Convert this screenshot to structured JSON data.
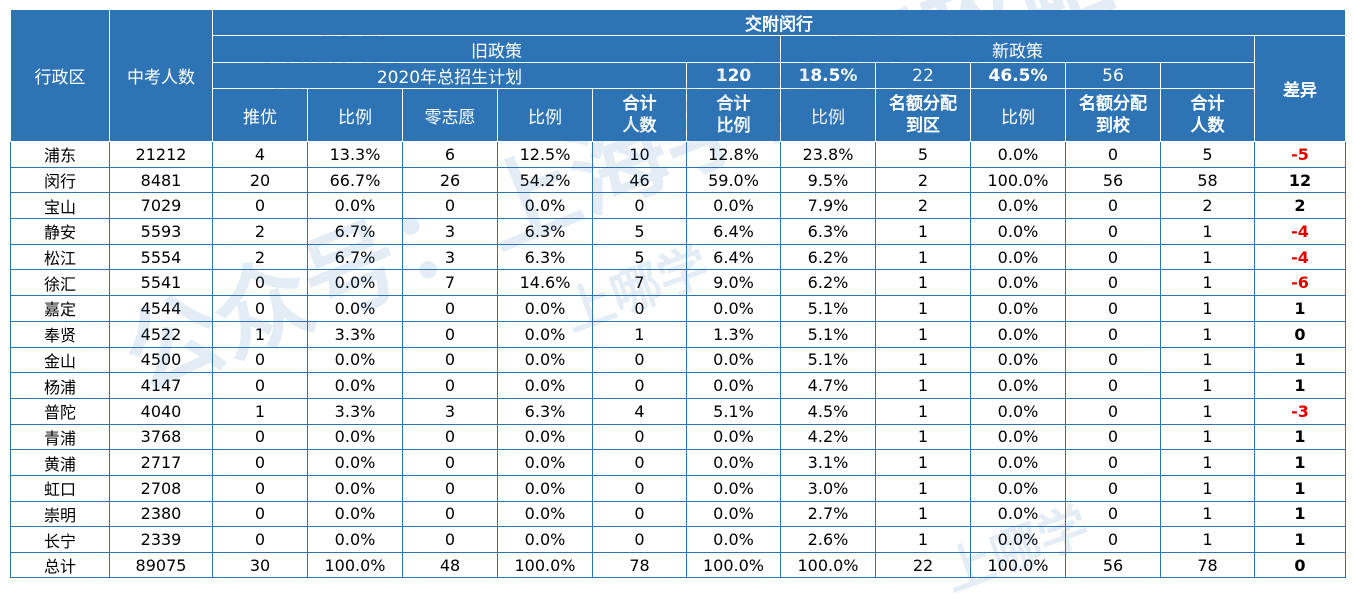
{
  "table": {
    "h_district": "行政区",
    "h_count": "中考人数",
    "h_top": "交附闵行",
    "h_old": "旧政策",
    "h_new": "新政策",
    "h_diff": "差异",
    "h_plan": "2020年总招生计划",
    "h_120": "120",
    "h_185": "18.5%",
    "h_22": "22",
    "h_465": "46.5%",
    "h_56": "56",
    "cols": [
      "推优",
      "比例",
      "零志愿",
      "比例",
      "合计\n人数",
      "合计\n比例",
      "比例",
      "名额分配\n到区",
      "比例",
      "名额分配\n到校",
      "合计\n人数"
    ],
    "rows": [
      [
        "浦东",
        "21212",
        "4",
        "13.3%",
        "6",
        "12.5%",
        "10",
        "12.8%",
        "23.8%",
        "5",
        "0.0%",
        "0",
        "5",
        "-5"
      ],
      [
        "闵行",
        "8481",
        "20",
        "66.7%",
        "26",
        "54.2%",
        "46",
        "59.0%",
        "9.5%",
        "2",
        "100.0%",
        "56",
        "58",
        "12"
      ],
      [
        "宝山",
        "7029",
        "0",
        "0.0%",
        "0",
        "0.0%",
        "0",
        "0.0%",
        "7.9%",
        "2",
        "0.0%",
        "0",
        "2",
        "2"
      ],
      [
        "静安",
        "5593",
        "2",
        "6.7%",
        "3",
        "6.3%",
        "5",
        "6.4%",
        "6.3%",
        "1",
        "0.0%",
        "0",
        "1",
        "-4"
      ],
      [
        "松江",
        "5554",
        "2",
        "6.7%",
        "3",
        "6.3%",
        "5",
        "6.4%",
        "6.2%",
        "1",
        "0.0%",
        "0",
        "1",
        "-4"
      ],
      [
        "徐汇",
        "5541",
        "0",
        "0.0%",
        "7",
        "14.6%",
        "7",
        "9.0%",
        "6.2%",
        "1",
        "0.0%",
        "0",
        "1",
        "-6"
      ],
      [
        "嘉定",
        "4544",
        "0",
        "0.0%",
        "0",
        "0.0%",
        "0",
        "0.0%",
        "5.1%",
        "1",
        "0.0%",
        "0",
        "1",
        "1"
      ],
      [
        "奉贤",
        "4522",
        "1",
        "3.3%",
        "0",
        "0.0%",
        "1",
        "1.3%",
        "5.1%",
        "1",
        "0.0%",
        "0",
        "1",
        "0"
      ],
      [
        "金山",
        "4500",
        "0",
        "0.0%",
        "0",
        "0.0%",
        "0",
        "0.0%",
        "5.1%",
        "1",
        "0.0%",
        "0",
        "1",
        "1"
      ],
      [
        "杨浦",
        "4147",
        "0",
        "0.0%",
        "0",
        "0.0%",
        "0",
        "0.0%",
        "4.7%",
        "1",
        "0.0%",
        "0",
        "1",
        "1"
      ],
      [
        "普陀",
        "4040",
        "1",
        "3.3%",
        "3",
        "6.3%",
        "4",
        "5.1%",
        "4.5%",
        "1",
        "0.0%",
        "0",
        "1",
        "-3"
      ],
      [
        "青浦",
        "3768",
        "0",
        "0.0%",
        "0",
        "0.0%",
        "0",
        "0.0%",
        "4.2%",
        "1",
        "0.0%",
        "0",
        "1",
        "1"
      ],
      [
        "黄浦",
        "2717",
        "0",
        "0.0%",
        "0",
        "0.0%",
        "0",
        "0.0%",
        "3.1%",
        "1",
        "0.0%",
        "0",
        "1",
        "1"
      ],
      [
        "虹口",
        "2708",
        "0",
        "0.0%",
        "0",
        "0.0%",
        "0",
        "0.0%",
        "3.0%",
        "1",
        "0.0%",
        "0",
        "1",
        "1"
      ],
      [
        "崇明",
        "2380",
        "0",
        "0.0%",
        "0",
        "0.0%",
        "0",
        "0.0%",
        "2.7%",
        "1",
        "0.0%",
        "0",
        "1",
        "1"
      ],
      [
        "长宁",
        "2339",
        "0",
        "0.0%",
        "0",
        "0.0%",
        "0",
        "0.0%",
        "2.6%",
        "1",
        "0.0%",
        "0",
        "1",
        "1"
      ],
      [
        "总计",
        "89075",
        "30",
        "100.0%",
        "48",
        "100.0%",
        "78",
        "100.0%",
        "100.0%",
        "22",
        "100.0%",
        "56",
        "78",
        "0"
      ]
    ]
  },
  "watermarks": {
    "main": "公众号：上海学区房攻略",
    "brand": "上哪学",
    "small": "查学校 用上哪学"
  },
  "colors": {
    "header_bg": "#2e74b5",
    "negative": "#e00000",
    "border": "#2e74b5"
  }
}
